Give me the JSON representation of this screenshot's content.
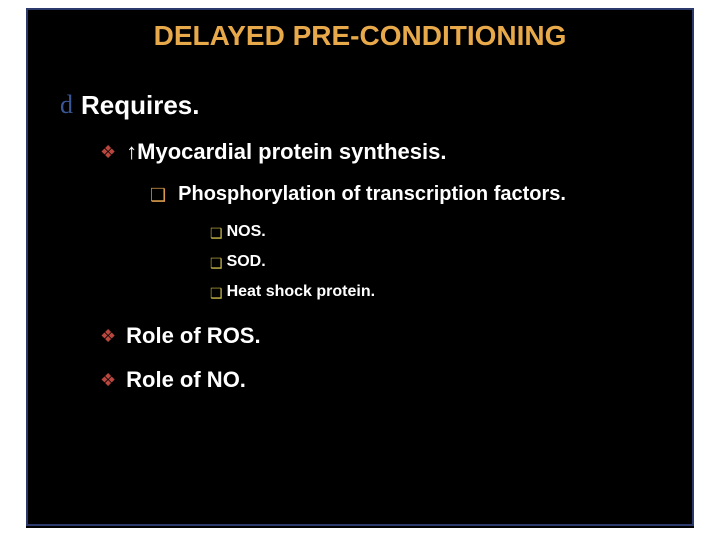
{
  "colors": {
    "title": "#e8a94a",
    "body_text": "#ffffff",
    "bullet_glyph": "#3a5694",
    "bullet_diamond": "#b9473f",
    "bullet_square_outer": "#d89a4a",
    "bullet_square_inner": "#c8b84a",
    "background": "#000000",
    "frame": "#2b3a6b"
  },
  "title": {
    "text": "DELAYED PRE-CONDITIONING",
    "fontsize": 28
  },
  "level1": {
    "bullet": "d",
    "item": "Requires.",
    "fontsize": 26,
    "indent": 0
  },
  "level2": {
    "bullet": "❖",
    "items": [
      {
        "prefix": "↑",
        "text": "Myocardial protein synthesis."
      },
      {
        "prefix": "",
        "text": "Role of ROS."
      },
      {
        "prefix": "",
        "text": "Role of NO."
      }
    ],
    "fontsize": 22,
    "indent": 40
  },
  "level3": {
    "bullet": "❑",
    "item": "Phosphorylation of transcription factors.",
    "fontsize": 20,
    "indent": 90
  },
  "level4": {
    "bullet": "❑",
    "items": [
      "NOS.",
      "SOD.",
      "Heat shock protein."
    ],
    "fontsize": 16,
    "indent": 150
  },
  "spacing": {
    "l1_mb": 18,
    "l2_mb": 18,
    "l3_mb": 16,
    "l4_mb": 10,
    "gap_before_ros": 20
  }
}
